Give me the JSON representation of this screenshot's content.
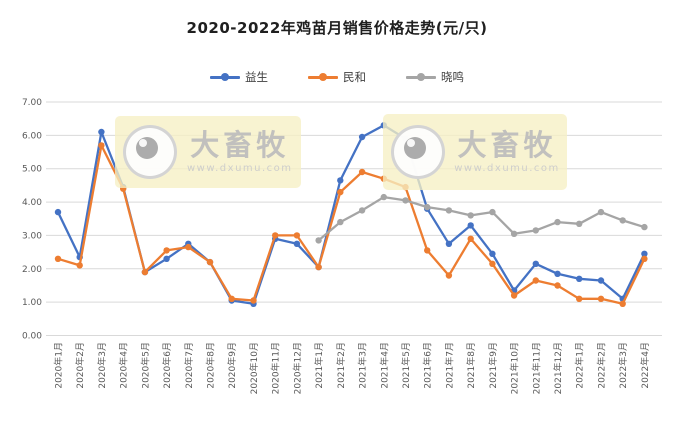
{
  "title": "2020-2022年鸡苗月销售价格走势(元/只)",
  "watermark": {
    "brand": "大畜牧",
    "url": "www.dxumu.com"
  },
  "chart_data": {
    "type": "line",
    "title": "2020-2022年鸡苗月销售价格走势(元/只)",
    "xlabel": "",
    "ylabel": "",
    "ylim": [
      0,
      7
    ],
    "yticks": [
      "0.00",
      "1.00",
      "2.00",
      "3.00",
      "4.00",
      "5.00",
      "6.00",
      "7.00"
    ],
    "grid": "horizontal",
    "legend_position": "top",
    "categories": [
      "2020年1月",
      "2020年2月",
      "2020年3月",
      "2020年4月",
      "2020年5月",
      "2020年6月",
      "2020年7月",
      "2020年8月",
      "2020年9月",
      "2020年10月",
      "2020年11月",
      "2020年12月",
      "2021年1月",
      "2021年2月",
      "2021年3月",
      "2021年4月",
      "2021年5月",
      "2021年6月",
      "2021年7月",
      "2021年8月",
      "2021年9月",
      "2021年10月",
      "2021年11月",
      "2021年12月",
      "2022年1月",
      "2022年2月",
      "2022年3月",
      "2022年4月"
    ],
    "series": [
      {
        "name": "益生",
        "color": "#4472C4",
        "values": [
          3.7,
          2.35,
          6.1,
          4.45,
          1.9,
          2.3,
          2.75,
          2.2,
          1.05,
          0.95,
          2.9,
          2.75,
          2.05,
          4.65,
          5.95,
          6.3,
          5.9,
          3.8,
          2.75,
          3.3,
          2.45,
          1.35,
          2.15,
          1.85,
          1.7,
          1.65,
          1.1,
          2.45
        ]
      },
      {
        "name": "民和",
        "color": "#ED7D31",
        "values": [
          2.3,
          2.1,
          5.7,
          4.4,
          1.9,
          2.55,
          2.65,
          2.2,
          1.1,
          1.05,
          3.0,
          3.0,
          2.05,
          4.3,
          4.9,
          4.7,
          4.45,
          2.55,
          1.8,
          2.9,
          2.15,
          1.2,
          1.65,
          1.5,
          1.1,
          1.1,
          0.95,
          2.3
        ]
      },
      {
        "name": "晓鸣",
        "color": "#A5A5A5",
        "values": [
          null,
          null,
          null,
          null,
          null,
          null,
          null,
          null,
          null,
          null,
          null,
          null,
          2.85,
          3.4,
          3.75,
          4.15,
          4.05,
          3.85,
          3.75,
          3.6,
          3.7,
          3.05,
          3.15,
          3.4,
          3.35,
          3.7,
          3.45,
          3.25
        ]
      }
    ]
  }
}
